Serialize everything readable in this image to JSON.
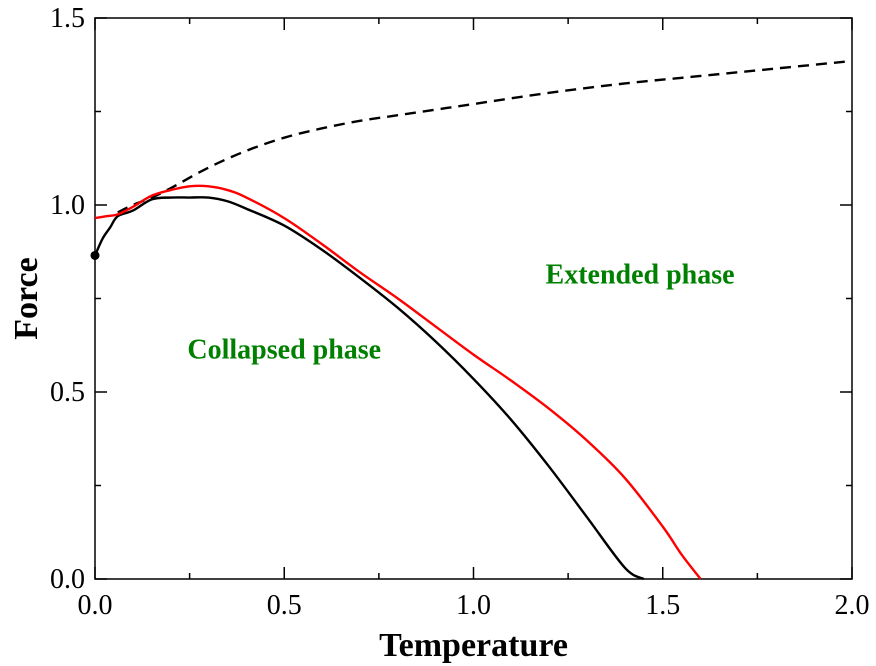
{
  "chart_data": {
    "type": "line",
    "title": "",
    "xlabel": "Temperature",
    "ylabel": "Force",
    "xlim": [
      0,
      2
    ],
    "ylim": [
      0,
      1.5
    ],
    "xticks": [
      0.0,
      0.5,
      1.0,
      1.5,
      2.0
    ],
    "xtick_labels": [
      "0.0",
      "0.5",
      "1.0",
      "1.5",
      "2.0"
    ],
    "yticks": [
      0.0,
      0.5,
      1.0,
      1.5
    ],
    "ytick_labels": [
      "0.0",
      "0.5",
      "1.0",
      "1.5"
    ],
    "x_minor_step": 0.25,
    "y_minor_step": 0.25,
    "grid": false,
    "annotations": [
      {
        "text": "Collapsed phase",
        "x": 0.5,
        "y": 0.59,
        "color": "#008000"
      },
      {
        "text": "Extended phase",
        "x": 1.44,
        "y": 0.79,
        "color": "#008000"
      }
    ],
    "points": [
      {
        "x": 0.0,
        "y": 0.865,
        "color": "#000000"
      }
    ],
    "series": [
      {
        "style": "dashed",
        "color": "#000000",
        "x": [
          0.06,
          0.1,
          0.15,
          0.2,
          0.3,
          0.4,
          0.5,
          0.6,
          0.7,
          0.8,
          0.9,
          1.0,
          1.2,
          1.4,
          1.6,
          1.8,
          2.0
        ],
        "y": [
          0.98,
          1.0,
          1.02,
          1.045,
          1.1,
          1.145,
          1.18,
          1.205,
          1.225,
          1.24,
          1.255,
          1.27,
          1.3,
          1.325,
          1.345,
          1.365,
          1.385
        ]
      },
      {
        "style": "solid",
        "color": "#000000",
        "x": [
          0.0,
          0.02,
          0.04,
          0.06,
          0.1,
          0.15,
          0.2,
          0.25,
          0.3,
          0.35,
          0.4,
          0.5,
          0.6,
          0.7,
          0.8,
          0.9,
          1.0,
          1.1,
          1.2,
          1.3,
          1.4,
          1.45
        ],
        "y": [
          0.865,
          0.91,
          0.94,
          0.97,
          0.985,
          1.015,
          1.02,
          1.02,
          1.02,
          1.01,
          0.99,
          0.945,
          0.88,
          0.805,
          0.725,
          0.635,
          0.535,
          0.425,
          0.3,
          0.165,
          0.03,
          0.0
        ]
      },
      {
        "style": "solid",
        "color": "#ff0000",
        "x": [
          0.0,
          0.03,
          0.06,
          0.1,
          0.15,
          0.2,
          0.25,
          0.3,
          0.35,
          0.4,
          0.5,
          0.6,
          0.7,
          0.8,
          0.9,
          1.0,
          1.1,
          1.2,
          1.3,
          1.4,
          1.5,
          1.55,
          1.6
        ],
        "y": [
          0.965,
          0.97,
          0.975,
          0.995,
          1.025,
          1.04,
          1.05,
          1.05,
          1.04,
          1.02,
          0.965,
          0.895,
          0.82,
          0.75,
          0.675,
          0.6,
          0.53,
          0.455,
          0.37,
          0.27,
          0.14,
          0.065,
          0.0
        ]
      }
    ]
  }
}
